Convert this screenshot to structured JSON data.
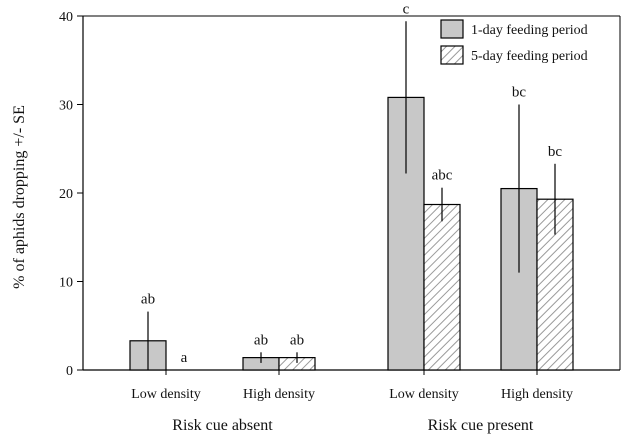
{
  "chart_data": {
    "type": "bar",
    "ylabel": "% of aphids dropping +/- SE",
    "ylim": [
      0,
      40
    ],
    "yticks": [
      0,
      10,
      20,
      30,
      40
    ],
    "groups": [
      {
        "label": "Risk cue absent",
        "categories": [
          "Low density",
          "High density"
        ]
      },
      {
        "label": "Risk cue present",
        "categories": [
          "Low density",
          "High density"
        ]
      }
    ],
    "categories": [
      "Low density",
      "High density",
      "Low density",
      "High density"
    ],
    "series": [
      {
        "name": "1-day feeding period",
        "values": [
          3.3,
          1.4,
          30.8,
          20.5
        ],
        "errors": [
          3.3,
          0.6,
          8.6,
          9.5
        ],
        "labels": [
          "ab",
          "ab",
          "c",
          "bc"
        ],
        "fill": "#c8c8c8"
      },
      {
        "name": "5-day feeding period",
        "values": [
          0,
          1.4,
          18.7,
          19.3
        ],
        "errors": [
          0,
          0.6,
          1.9,
          4.0
        ],
        "labels": [
          "a",
          "ab",
          "abc",
          "bc"
        ],
        "fill": "hatched"
      }
    ],
    "legend": "top-right"
  }
}
